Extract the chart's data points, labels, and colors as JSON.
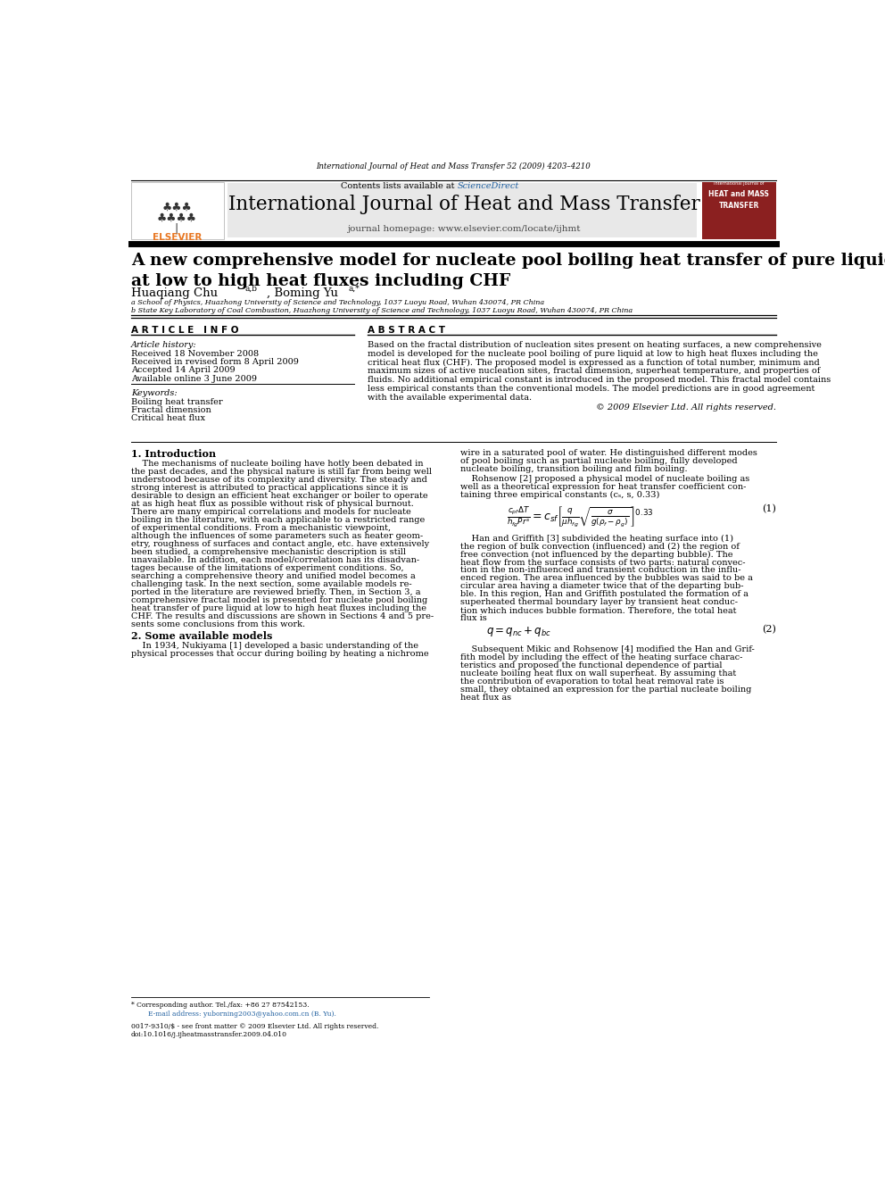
{
  "page_width": 9.92,
  "page_height": 13.23,
  "bg_color": "#ffffff",
  "header_citation": "International Journal of Heat and Mass Transfer 52 (2009) 4203–4210",
  "journal_name": "International Journal of Heat and Mass Transfer",
  "journal_homepage": "journal homepage: www.elsevier.com/locate/ijhmt",
  "sciencedirect_color": "#2060a0",
  "elsevier_color": "#e87722",
  "paper_title": "A new comprehensive model for nucleate pool boiling heat transfer of pure liquid\nat low to high heat fluxes including CHF",
  "affil_a": "a School of Physics, Huazhong University of Science and Technology, 1037 Luoyu Road, Wuhan 430074, PR China",
  "affil_b": "b State Key Laboratory of Coal Combustion, Huazhong University of Science and Technology, 1037 Luoyu Road, Wuhan 430074, PR China",
  "article_info_header": "A R T I C L E   I N F O",
  "abstract_header": "A B S T R A C T",
  "article_history_label": "Article history:",
  "received1": "Received 18 November 2008",
  "received2": "Received in revised form 8 April 2009",
  "accepted": "Accepted 14 April 2009",
  "available": "Available online 3 June 2009",
  "keywords_label": "Keywords:",
  "keyword1": "Boiling heat transfer",
  "keyword2": "Fractal dimension",
  "keyword3": "Critical heat flux",
  "copyright": "© 2009 Elsevier Ltd. All rights reserved.",
  "section1_header": "1. Introduction",
  "section2_header": "2. Some available models",
  "eq1_label": "(1)",
  "eq2_label": "(2)",
  "footnote_corresponding": "* Corresponding author. Tel./fax: +86 27 87542153.",
  "footnote_email": "E-mail address: yuborning2003@yahoo.com.cn (B. Yu).",
  "footer_issn": "0017-9310/$ - see front matter © 2009 Elsevier Ltd. All rights reserved.",
  "footer_doi": "doi:10.1016/j.ijheatmasstransfer.2009.04.010"
}
